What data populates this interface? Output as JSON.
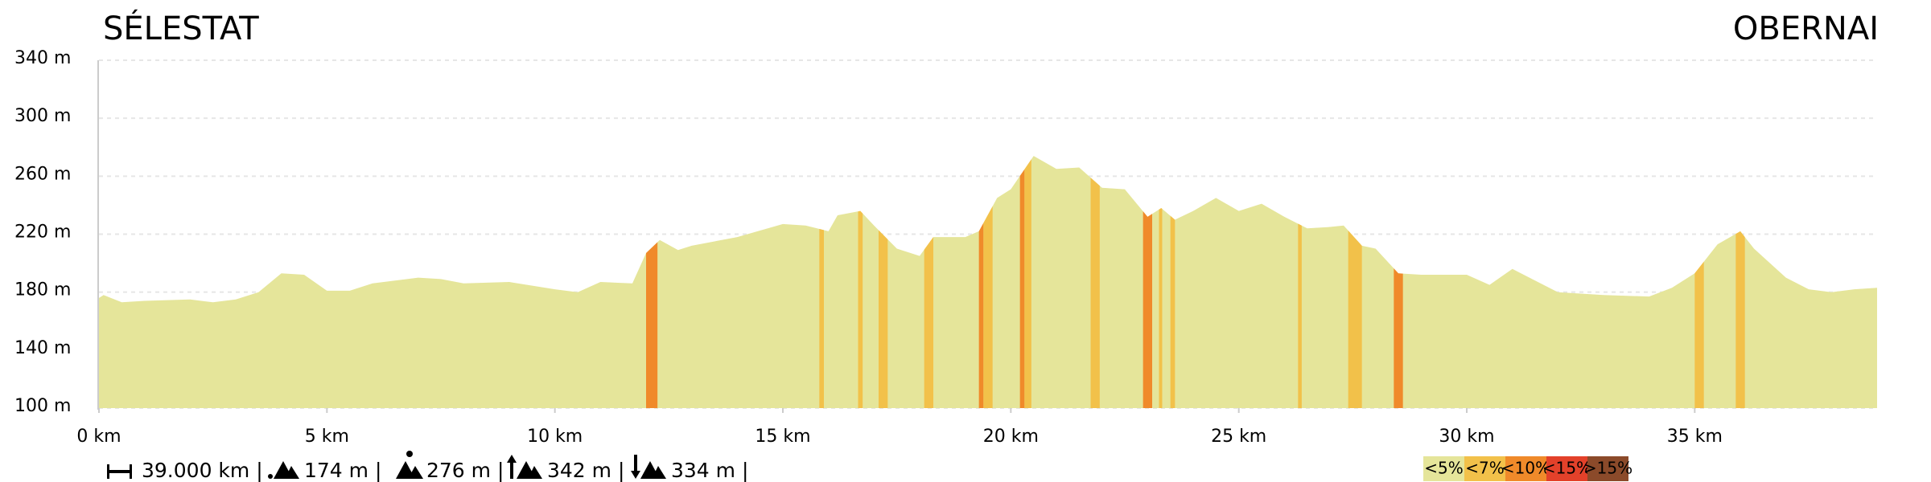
{
  "chart_data": {
    "type": "area",
    "title": "SÉLESTAT",
    "title_right": "OBERNAI",
    "color": "#e5e59a",
    "x": [
      0,
      0.1,
      0.5,
      1,
      2,
      2.5,
      3,
      3.5,
      4,
      4.5,
      5,
      5.5,
      6,
      7,
      7.5,
      8,
      9,
      10,
      10.5,
      11,
      11.7,
      12,
      12.3,
      12.7,
      13,
      14,
      15,
      15.5,
      16,
      16.2,
      16.7,
      17,
      17.5,
      18,
      18.3,
      19,
      19.3,
      19.7,
      20,
      20.5,
      21,
      21.5,
      22,
      22.5,
      23,
      23.3,
      23.6,
      24,
      24.5,
      25,
      25.5,
      26,
      26.5,
      27,
      27.3,
      27.7,
      28,
      28.5,
      29,
      30,
      30.5,
      31,
      32,
      33,
      34,
      34.5,
      35,
      35.5,
      36,
      36.3,
      37,
      37.5,
      38,
      38.5,
      39
    ],
    "values": [
      176,
      178,
      173,
      174,
      175,
      173,
      175,
      180,
      193,
      192,
      181,
      181,
      186,
      190,
      189,
      186,
      187,
      182,
      180,
      187,
      186,
      207,
      216,
      209,
      212,
      218,
      227,
      226,
      222,
      233,
      236,
      226,
      210,
      205,
      218,
      218,
      222,
      245,
      251,
      274,
      265,
      266,
      252,
      251,
      232,
      238,
      230,
      236,
      245,
      236,
      241,
      232,
      224,
      225,
      226,
      212,
      210,
      193,
      192,
      192,
      185,
      196,
      180,
      178,
      177,
      183,
      193,
      213,
      222,
      210,
      190,
      182,
      180,
      182,
      183
    ],
    "sections": [
      {
        "start": 12.0,
        "end": 12.25,
        "color": "#f08a2a"
      },
      {
        "start": 15.8,
        "end": 15.9,
        "color": "#f2c14a"
      },
      {
        "start": 16.65,
        "end": 16.75,
        "color": "#f2c14a"
      },
      {
        "start": 17.1,
        "end": 17.3,
        "color": "#f2c14a"
      },
      {
        "start": 18.1,
        "end": 18.3,
        "color": "#f2c14a"
      },
      {
        "start": 19.3,
        "end": 19.4,
        "color": "#f08a2a"
      },
      {
        "start": 19.4,
        "end": 19.6,
        "color": "#f2c14a"
      },
      {
        "start": 20.2,
        "end": 20.3,
        "color": "#f08a2a"
      },
      {
        "start": 20.3,
        "end": 20.45,
        "color": "#f2c14a"
      },
      {
        "start": 21.75,
        "end": 21.95,
        "color": "#f2c14a"
      },
      {
        "start": 22.9,
        "end": 23.1,
        "color": "#f08a2a"
      },
      {
        "start": 23.25,
        "end": 23.32,
        "color": "#f2c14a"
      },
      {
        "start": 23.5,
        "end": 23.6,
        "color": "#f2c14a"
      },
      {
        "start": 26.3,
        "end": 26.38,
        "color": "#f2c14a"
      },
      {
        "start": 27.4,
        "end": 27.7,
        "color": "#f2c14a"
      },
      {
        "start": 28.4,
        "end": 28.6,
        "color": "#f08a2a"
      },
      {
        "start": 35.0,
        "end": 35.2,
        "color": "#f2c14a"
      },
      {
        "start": 35.9,
        "end": 36.1,
        "color": "#f2c14a"
      }
    ],
    "xlim": [
      0,
      39
    ],
    "ylim": [
      100,
      340
    ],
    "xticks": [
      {
        "value": 0,
        "label": "0 km"
      },
      {
        "value": 5,
        "label": "5 km"
      },
      {
        "value": 10,
        "label": "10 km"
      },
      {
        "value": 15,
        "label": "15 km"
      },
      {
        "value": 20,
        "label": "20 km"
      },
      {
        "value": 25,
        "label": "25 km"
      },
      {
        "value": 30,
        "label": "30 km"
      },
      {
        "value": 35,
        "label": "35 km"
      }
    ],
    "yticks": [
      {
        "value": 100,
        "label": "100 m"
      },
      {
        "value": 140,
        "label": "140 m"
      },
      {
        "value": 180,
        "label": "180 m"
      },
      {
        "value": 220,
        "label": "220 m"
      },
      {
        "value": 260,
        "label": "260 m"
      },
      {
        "value": 300,
        "label": "300 m"
      },
      {
        "value": 340,
        "label": "340 m"
      }
    ],
    "grid": true,
    "stats": [
      "39.000 km |",
      "174 m |",
      "276 m |",
      "342 m |",
      "334 m |"
    ],
    "legend": [
      {
        "label": "<5%",
        "color": "#e5e59a"
      },
      {
        "label": "<7%",
        "color": "#f2c14a"
      },
      {
        "label": "<10%",
        "color": "#f08a2a"
      },
      {
        "label": "<15%",
        "color": "#e3412a"
      },
      {
        "label": ">15%",
        "color": "#8b4a2a"
      }
    ]
  }
}
